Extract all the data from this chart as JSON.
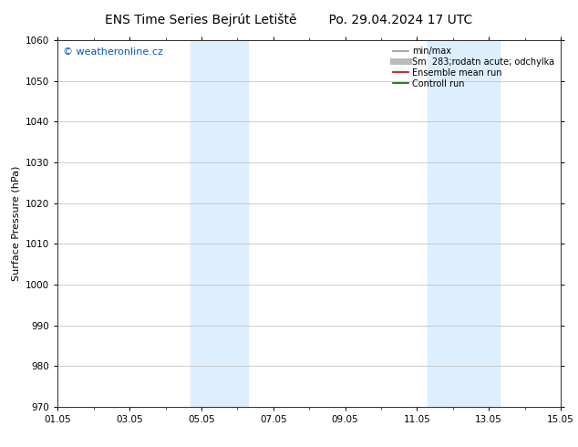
{
  "title_left": "ENS Time Series Bejrút Letiště",
  "title_right": "Po. 29.04.2024 17 UTC",
  "ylabel": "Surface Pressure (hPa)",
  "ylim": [
    970,
    1060
  ],
  "yticks": [
    970,
    980,
    990,
    1000,
    1010,
    1020,
    1030,
    1040,
    1050,
    1060
  ],
  "xlim_days": [
    0,
    14
  ],
  "xtick_positions": [
    0,
    2,
    4,
    6,
    8,
    10,
    12,
    14
  ],
  "xtick_labels": [
    "01.05",
    "03.05",
    "05.05",
    "07.05",
    "09.05",
    "11.05",
    "13.05",
    "15.05"
  ],
  "shaded_bands": [
    {
      "xmin": 3.7,
      "xmax": 5.3,
      "color": "#ddeeff"
    },
    {
      "xmin": 10.3,
      "xmax": 12.3,
      "color": "#ddeeff"
    }
  ],
  "watermark_text": "© weatheronline.cz",
  "watermark_color": "#0055cc",
  "legend_entries": [
    {
      "label": "min/max",
      "color": "#999999",
      "lw": 1.2,
      "linestyle": "-"
    },
    {
      "label": "Sm  283;rodatn acute; odchylka",
      "color": "#bbbbbb",
      "lw": 5,
      "linestyle": "-"
    },
    {
      "label": "Ensemble mean run",
      "color": "#cc0000",
      "lw": 1.2,
      "linestyle": "-"
    },
    {
      "label": "Controll run",
      "color": "#006600",
      "lw": 1.2,
      "linestyle": "-"
    }
  ],
  "bg_color": "#ffffff",
  "plot_bg_color": "#ffffff",
  "grid_color": "#bbbbbb",
  "title_fontsize": 10,
  "axis_label_fontsize": 8,
  "tick_fontsize": 7.5,
  "legend_fontsize": 7,
  "watermark_fontsize": 8
}
